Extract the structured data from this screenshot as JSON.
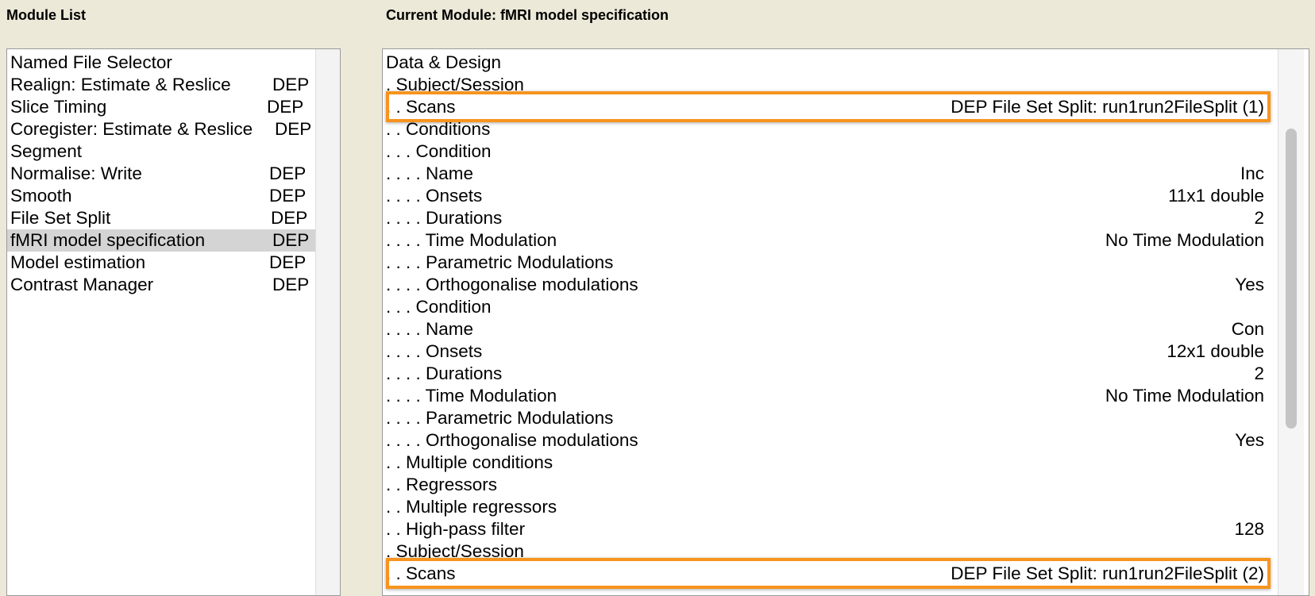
{
  "header": {
    "module_list_title": "Module List",
    "current_module_title": "Current Module: fMRI model specification"
  },
  "colors": {
    "highlight": "#f7941d",
    "selected_row": "#d4d4d4",
    "background": "#ece9d8"
  },
  "modules": [
    {
      "name": "Named File Selector",
      "dep": ""
    },
    {
      "name": "Realign: Estimate & Reslice",
      "dep": "DEP"
    },
    {
      "name": "Slice Timing",
      "dep": "DEP"
    },
    {
      "name": "Coregister: Estimate & Reslice",
      "dep": "DEP"
    },
    {
      "name": "Segment",
      "dep": ""
    },
    {
      "name": "Normalise: Write",
      "dep": "DEP"
    },
    {
      "name": "Smooth",
      "dep": "DEP"
    },
    {
      "name": "File Set Split",
      "dep": "DEP"
    },
    {
      "name": "fMRI model specification",
      "dep": "DEP",
      "selected": true
    },
    {
      "name": "Model estimation",
      "dep": "DEP"
    },
    {
      "name": "Contrast Manager",
      "dep": "DEP"
    }
  ],
  "details": [
    {
      "label": "Data & Design",
      "value": ""
    },
    {
      "label": " . Subject/Session",
      "value": ""
    },
    {
      "label": " . . Scans",
      "value": "DEP File Set Split: run1run2FileSplit (1)",
      "highlighted": true
    },
    {
      "label": " . . Conditions",
      "value": ""
    },
    {
      "label": " . . . Condition",
      "value": ""
    },
    {
      "label": " . . . . Name",
      "value": "Inc"
    },
    {
      "label": " . . . . Onsets",
      "value": "11x1 double"
    },
    {
      "label": " . . . . Durations",
      "value": "2"
    },
    {
      "label": " . . . . Time Modulation",
      "value": "No Time Modulation"
    },
    {
      "label": " . . . . Parametric Modulations",
      "value": ""
    },
    {
      "label": " . . . . Orthogonalise modulations",
      "value": "Yes"
    },
    {
      "label": " . . . Condition",
      "value": ""
    },
    {
      "label": " . . . . Name",
      "value": "Con"
    },
    {
      "label": " . . . . Onsets",
      "value": "12x1 double"
    },
    {
      "label": " . . . . Durations",
      "value": "2"
    },
    {
      "label": " . . . . Time Modulation",
      "value": "No Time Modulation"
    },
    {
      "label": " . . . . Parametric Modulations",
      "value": ""
    },
    {
      "label": " . . . . Orthogonalise modulations",
      "value": "Yes"
    },
    {
      "label": " . . Multiple conditions",
      "value": ""
    },
    {
      "label": " . . Regressors",
      "value": ""
    },
    {
      "label": " . . Multiple regressors",
      "value": ""
    },
    {
      "label": " . . High-pass filter",
      "value": "128"
    },
    {
      "label": " . Subject/Session",
      "value": ""
    },
    {
      "label": " . . Scans",
      "value": "DEP File Set Split: run1run2FileSplit (2)",
      "highlighted": true
    }
  ]
}
